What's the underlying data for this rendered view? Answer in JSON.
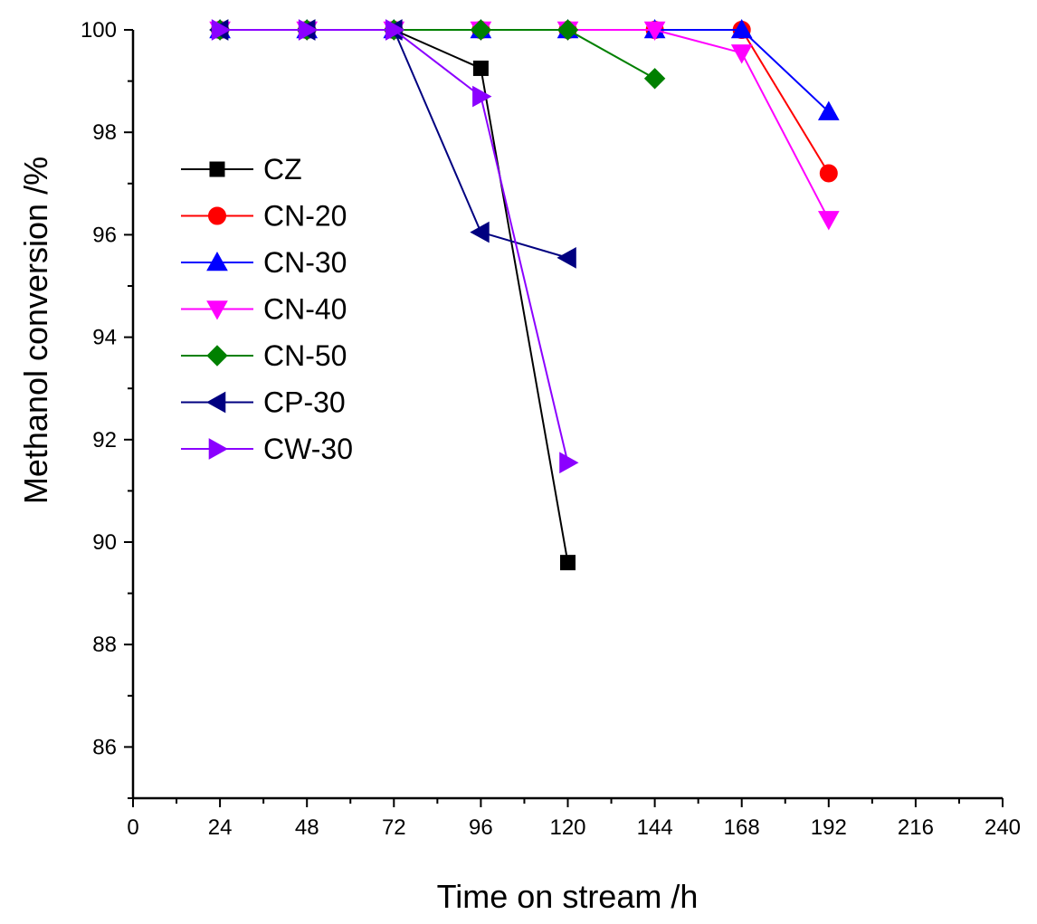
{
  "chart_data": {
    "type": "line",
    "xlabel": "Time on stream /h",
    "ylabel": "Methanol conversion /%",
    "xlim": [
      0,
      240
    ],
    "ylim": [
      85,
      100
    ],
    "x_ticks": [
      0,
      24,
      48,
      72,
      96,
      120,
      144,
      168,
      192,
      216,
      240
    ],
    "x_tick_labels": [
      "0",
      "24",
      "48",
      "72",
      "96",
      "120",
      "144",
      "168",
      "192",
      "216",
      "240"
    ],
    "y_ticks": [
      86,
      88,
      90,
      92,
      94,
      96,
      98,
      100
    ],
    "y_tick_labels": [
      "86",
      "88",
      "90",
      "92",
      "94",
      "96",
      "98",
      "100"
    ],
    "legend_position": "upper-left",
    "series": [
      {
        "name": "CZ",
        "color": "#000000",
        "marker": "square",
        "x": [
          24,
          48,
          72,
          96,
          120
        ],
        "y": [
          100,
          100,
          100,
          99.25,
          89.6
        ]
      },
      {
        "name": "CN-20",
        "color": "#ff0000",
        "marker": "circle",
        "x": [
          24,
          48,
          72,
          96,
          120,
          144,
          168,
          192
        ],
        "y": [
          100,
          100,
          100,
          100,
          100,
          100,
          100,
          97.2
        ]
      },
      {
        "name": "CN-30",
        "color": "#0000ff",
        "marker": "triangle-up",
        "x": [
          24,
          48,
          72,
          96,
          120,
          144,
          168,
          192
        ],
        "y": [
          100,
          100,
          100,
          100,
          100,
          100,
          100,
          98.4
        ]
      },
      {
        "name": "CN-40",
        "color": "#ff00ff",
        "marker": "triangle-down",
        "x": [
          24,
          48,
          72,
          96,
          120,
          144,
          168,
          192
        ],
        "y": [
          100,
          100,
          100,
          100,
          100,
          100,
          99.55,
          96.3
        ]
      },
      {
        "name": "CN-50",
        "color": "#008000",
        "marker": "diamond",
        "x": [
          24,
          48,
          72,
          96,
          120,
          144
        ],
        "y": [
          100,
          100,
          100,
          100,
          100,
          99.05
        ]
      },
      {
        "name": "CP-30",
        "color": "#000080",
        "marker": "triangle-left",
        "x": [
          24,
          48,
          72,
          96,
          120
        ],
        "y": [
          100,
          100,
          100,
          96.05,
          95.55
        ]
      },
      {
        "name": "CW-30",
        "color": "#8b00ff",
        "marker": "triangle-right",
        "x": [
          24,
          48,
          72,
          96,
          120
        ],
        "y": [
          100,
          100,
          100,
          98.7,
          91.55
        ]
      }
    ]
  }
}
